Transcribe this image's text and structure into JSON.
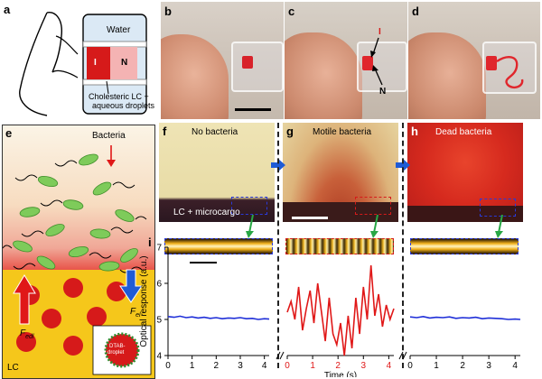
{
  "panel_labels": {
    "a": "a",
    "b": "b",
    "c": "c",
    "d": "d",
    "e": "e",
    "f": "f",
    "g": "g",
    "h": "h",
    "i": "i"
  },
  "panel_a": {
    "water_label": "Water",
    "i_label": "I",
    "n_label": "N",
    "caption_line1": "Cholesteric LC +",
    "caption_line2": "aqueous droplets"
  },
  "panel_c": {
    "i_marker": "I",
    "n_marker": "N"
  },
  "panel_e": {
    "bacteria_label": "Bacteria",
    "force_left": "F",
    "force_left_sub": "edl",
    "force_right": "F",
    "force_right_sub": "el",
    "lc_label": "LC",
    "droplet_line1": "DTAB-",
    "droplet_line2": "droplet"
  },
  "panel_titles": {
    "f": "No bacteria",
    "g": "Motile bacteria",
    "h": "Dead bacteria"
  },
  "panel_f_label": "LC + microcargo",
  "colors": {
    "blue_trace": "#1f2fd8",
    "red_trace": "#e01818",
    "blue_arrow": "#1e5bd6",
    "green_arrow": "#28a745"
  },
  "chart_data": {
    "type": "line",
    "ylabel": "Optical response (a.u.)",
    "xlabel": "Time (s)",
    "ylim": [
      4,
      7
    ],
    "yticks": [
      "4",
      "5",
      "6",
      "7"
    ],
    "xticks": [
      "0",
      "1",
      "2",
      "3",
      "4"
    ],
    "xlim": [
      0,
      4.2
    ],
    "series": [
      {
        "color": "#1f2fd8",
        "x": [
          0,
          0.25,
          0.5,
          0.75,
          1.0,
          1.25,
          1.5,
          1.75,
          2.0,
          2.25,
          2.5,
          2.75,
          3.0,
          3.25,
          3.5,
          3.75,
          4.0,
          4.2
        ],
        "values": [
          5.08,
          5.06,
          5.09,
          5.05,
          5.07,
          5.04,
          5.06,
          5.03,
          5.05,
          5.02,
          5.04,
          5.03,
          5.05,
          5.02,
          5.03,
          5.0,
          5.02,
          5.01
        ]
      },
      {
        "color": "#e01818",
        "x": [
          0,
          0.15,
          0.3,
          0.45,
          0.6,
          0.75,
          0.9,
          1.05,
          1.2,
          1.35,
          1.5,
          1.65,
          1.8,
          1.95,
          2.1,
          2.25,
          2.4,
          2.55,
          2.7,
          2.85,
          3.0,
          3.15,
          3.3,
          3.45,
          3.6,
          3.75,
          3.9,
          4.05,
          4.2
        ],
        "values": [
          5.2,
          5.5,
          5.0,
          5.9,
          4.7,
          5.3,
          5.8,
          4.9,
          6.0,
          5.2,
          4.4,
          5.6,
          4.6,
          4.3,
          4.9,
          4.0,
          5.1,
          4.2,
          5.6,
          4.6,
          5.9,
          5.0,
          6.5,
          5.1,
          5.7,
          4.8,
          5.4,
          5.0,
          5.3
        ]
      },
      {
        "color": "#1f2fd8",
        "x": [
          0,
          0.25,
          0.5,
          0.75,
          1.0,
          1.25,
          1.5,
          1.75,
          2.0,
          2.25,
          2.5,
          2.75,
          3.0,
          3.25,
          3.5,
          3.75,
          4.0,
          4.2
        ],
        "values": [
          5.07,
          5.05,
          5.08,
          5.04,
          5.06,
          5.05,
          5.07,
          5.03,
          5.05,
          5.04,
          5.06,
          5.02,
          5.04,
          5.03,
          5.02,
          5.0,
          5.01,
          5.0
        ]
      }
    ]
  }
}
